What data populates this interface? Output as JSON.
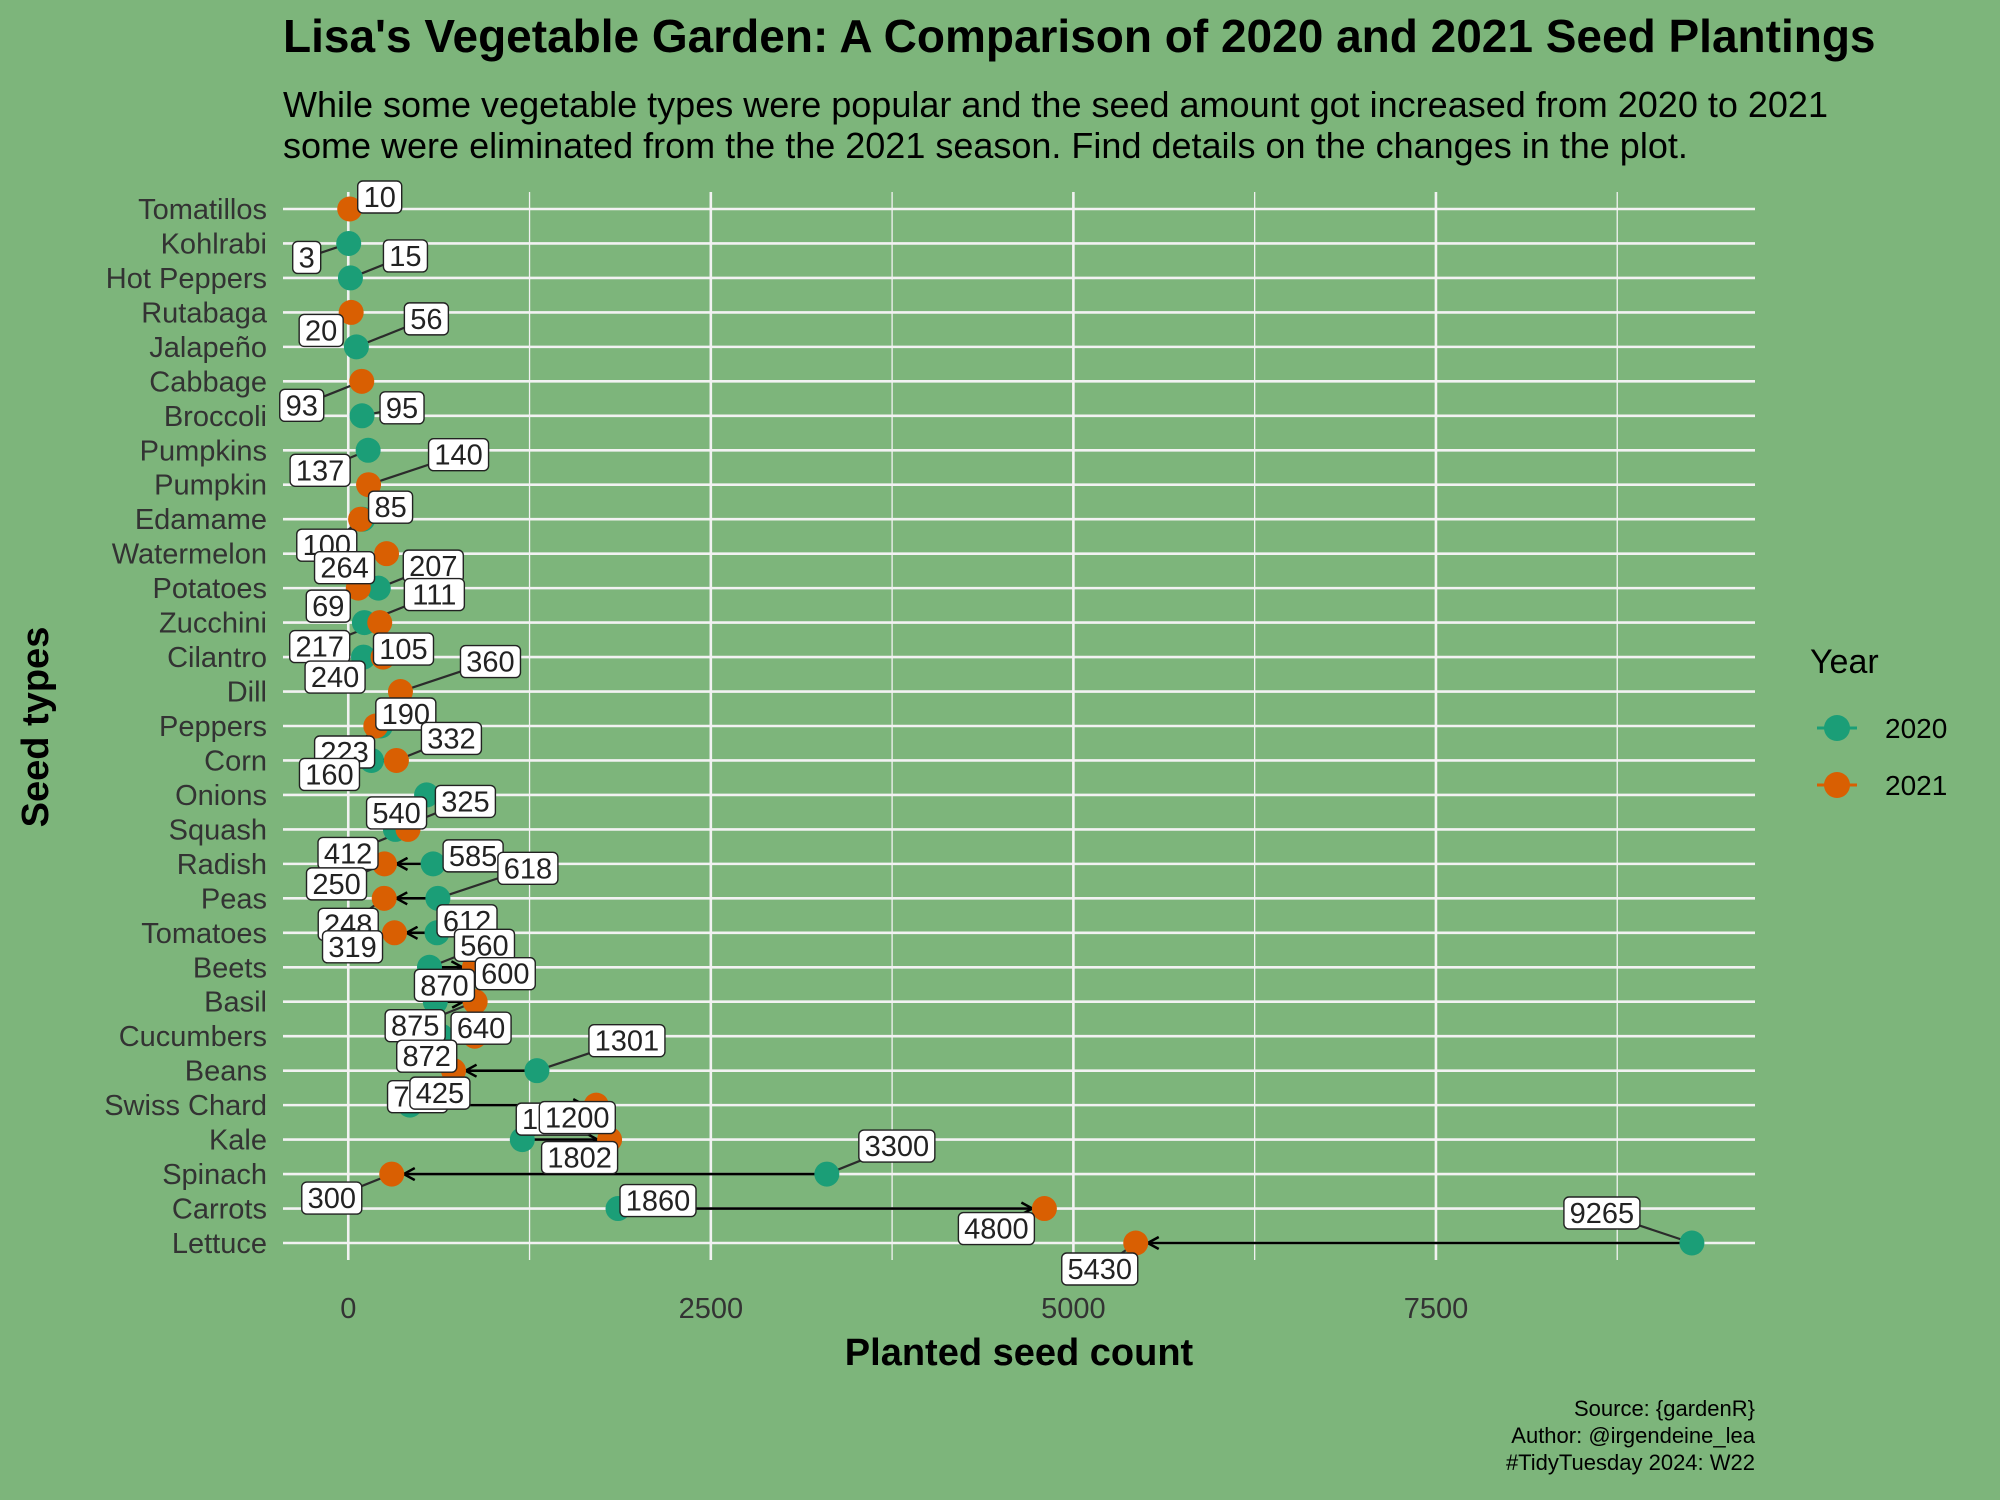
{
  "chart_data": {
    "type": "dumbbell",
    "title": "Lisa's Vegetable Garden: A  Comparison of 2020 and 2021 Seed Plantings",
    "subtitle": [
      "While some vegetable types were popular and the seed amount got increased from 2020 to 2021",
      "some were eliminated from the the 2021 season. Find details on the changes in the plot."
    ],
    "xlabel": "Planted seed count",
    "ylabel": "Seed types",
    "x_ticks": [
      0,
      2500,
      5000,
      7500
    ],
    "xlim": [
      -450,
      9700
    ],
    "legend": {
      "title": "Year",
      "position": "right",
      "items": [
        {
          "label": "2020",
          "color": "#1b9e77"
        },
        {
          "label": "2021",
          "color": "#d95f02"
        }
      ]
    },
    "colors": {
      "2020": "#1b9e77",
      "2021": "#d95f02",
      "background": "#7db57b",
      "grid": "#f2f2f2"
    },
    "grid": true,
    "categories": [
      "Tomatillos",
      "Kohlrabi",
      "Hot Peppers",
      "Rutabaga",
      "Jalapeño",
      "Cabbage",
      "Broccoli",
      "Pumpkins",
      "Pumpkin",
      "Edamame",
      "Watermelon",
      "Potatoes",
      "Zucchini",
      "Cilantro",
      "Dill",
      "Peppers",
      "Corn",
      "Onions",
      "Squash",
      "Radish",
      "Peas",
      "Tomatoes",
      "Beets",
      "Basil",
      "Cucumbers",
      "Beans",
      "Swiss Chard",
      "Kale",
      "Spinach",
      "Carrots",
      "Lettuce"
    ],
    "values_2020": [
      null,
      3,
      15,
      null,
      56,
      null,
      95,
      137,
      null,
      100,
      null,
      207,
      111,
      105,
      null,
      223,
      160,
      540,
      325,
      585,
      618,
      612,
      560,
      600,
      640,
      1301,
      425,
      1200,
      3300,
      1860,
      9265
    ],
    "values_2021": [
      10,
      null,
      null,
      20,
      null,
      93,
      null,
      null,
      140,
      85,
      264,
      69,
      217,
      240,
      360,
      190,
      332,
      null,
      412,
      250,
      248,
      319,
      870,
      875,
      872,
      726,
      1710,
      1802,
      300,
      4800,
      5430
    ],
    "caption": [
      "Source: {gardenR}",
      "Author: @irgendeine_lea",
      "#TidyTuesday 2024: W22"
    ]
  }
}
